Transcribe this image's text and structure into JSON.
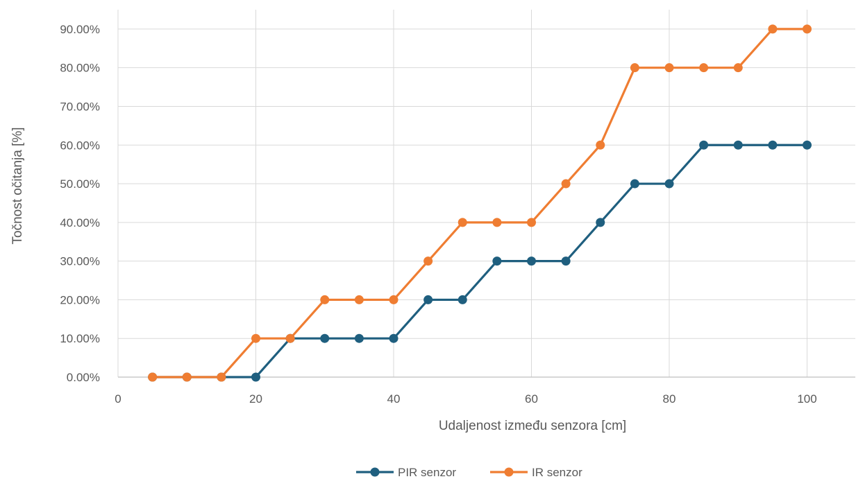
{
  "chart_data": {
    "type": "line",
    "title": "",
    "xlabel": "Udaljenost između senzora [cm]",
    "ylabel": "Točnost očitanja [%]",
    "xlim": [
      0,
      107
    ],
    "ylim": [
      0,
      0.95
    ],
    "x_ticks": [
      0,
      20,
      40,
      60,
      80,
      100
    ],
    "x_tick_labels": [
      "0",
      "20",
      "40",
      "60",
      "80",
      "100"
    ],
    "y_ticks": [
      0,
      0.1,
      0.2,
      0.3,
      0.4,
      0.5,
      0.6,
      0.7,
      0.8,
      0.9
    ],
    "y_tick_labels": [
      "0.00%",
      "10.00%",
      "20.00%",
      "30.00%",
      "40.00%",
      "50.00%",
      "60.00%",
      "70.00%",
      "80.00%",
      "90.00%"
    ],
    "grid": true,
    "legend_position": "bottom",
    "x": [
      5,
      10,
      15,
      20,
      25,
      30,
      35,
      40,
      45,
      50,
      55,
      60,
      65,
      70,
      75,
      80,
      85,
      90,
      95,
      100
    ],
    "series": [
      {
        "name": "PIR senzor",
        "color": "#1f5f7f",
        "values": [
          0,
          0,
          0,
          0,
          0.1,
          0.1,
          0.1,
          0.1,
          0.2,
          0.2,
          0.3,
          0.3,
          0.3,
          0.4,
          0.5,
          0.5,
          0.6,
          0.6,
          0.6,
          0.6
        ]
      },
      {
        "name": "IR senzor",
        "color": "#ef7d32",
        "values": [
          0,
          0,
          0,
          0.1,
          0.1,
          0.2,
          0.2,
          0.2,
          0.3,
          0.4,
          0.4,
          0.4,
          0.5,
          0.6,
          0.8,
          0.8,
          0.8,
          0.8,
          0.9,
          0.9
        ]
      }
    ]
  }
}
